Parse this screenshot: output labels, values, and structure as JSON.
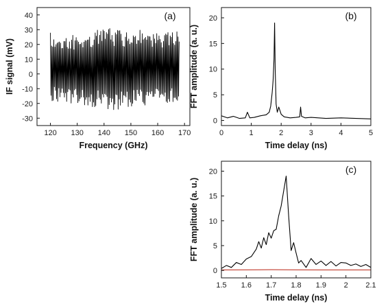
{
  "chart_data": [
    {
      "panel": "(a)",
      "type": "line",
      "xlabel": "Frequency (GHz)",
      "ylabel": "IF signal (mV)",
      "xlim": [
        115,
        172
      ],
      "ylim": [
        -35,
        45
      ],
      "xticks": [
        120,
        130,
        140,
        150,
        160,
        170
      ],
      "yticks": [
        -30,
        -20,
        -10,
        0,
        10,
        20,
        30,
        40
      ],
      "grid": false,
      "series": [
        {
          "color": "#000000",
          "description_points": {
            "x": [
              120,
              126,
              132,
              138,
              144,
              150,
              156,
              162,
              168
            ],
            "upper": [
              28,
              25,
              28,
              31,
              31,
              30,
              30,
              28,
              30
            ],
            "lower": [
              -18,
              -20,
              -21,
              -23,
              -25,
              -22,
              -22,
              -20,
              -19
            ]
          }
        }
      ]
    },
    {
      "panel": "(b)",
      "type": "line",
      "xlabel": "Time delay (ns)",
      "ylabel": "FFT amplitude (a. u.)",
      "xlim": [
        0,
        5
      ],
      "ylim": [
        -1,
        22
      ],
      "xticks": [
        0,
        1,
        2,
        3,
        4,
        5
      ],
      "yticks": [
        0,
        5,
        10,
        15,
        20
      ],
      "grid": false,
      "series": [
        {
          "color": "#000000",
          "x": [
            0.0,
            0.2,
            0.4,
            0.6,
            0.8,
            0.87,
            0.95,
            1.1,
            1.3,
            1.5,
            1.6,
            1.65,
            1.7,
            1.73,
            1.76,
            1.78,
            1.8,
            1.83,
            1.87,
            1.92,
            2.0,
            2.1,
            2.3,
            2.5,
            2.62,
            2.65,
            2.68,
            2.8,
            3.0,
            3.5,
            4.0,
            4.5,
            5.0
          ],
          "y": [
            0.9,
            0.5,
            0.8,
            0.4,
            0.5,
            1.6,
            0.5,
            0.6,
            0.9,
            1.1,
            1.6,
            2.8,
            5.5,
            7.8,
            12.0,
            19.0,
            10.0,
            3.2,
            1.6,
            2.6,
            1.2,
            0.7,
            0.5,
            0.6,
            0.7,
            2.6,
            0.8,
            0.5,
            0.6,
            0.4,
            0.5,
            0.4,
            0.3
          ]
        }
      ]
    },
    {
      "panel": "(c)",
      "type": "line",
      "xlabel": "Time delay (ns)",
      "ylabel": "FFT amplitude (a. u.)",
      "xlim": [
        1.5,
        2.1
      ],
      "ylim": [
        -1.5,
        22
      ],
      "xticks": [
        1.5,
        1.6,
        1.7,
        1.8,
        1.9,
        2.0,
        2.1
      ],
      "yticks": [
        0,
        5,
        10,
        15,
        20
      ],
      "grid": false,
      "series": [
        {
          "color": "#000000",
          "x": [
            1.5,
            1.52,
            1.54,
            1.56,
            1.58,
            1.6,
            1.62,
            1.64,
            1.65,
            1.66,
            1.67,
            1.68,
            1.69,
            1.7,
            1.71,
            1.72,
            1.73,
            1.74,
            1.75,
            1.76,
            1.77,
            1.78,
            1.79,
            1.8,
            1.81,
            1.82,
            1.84,
            1.86,
            1.88,
            1.9,
            1.92,
            1.94,
            1.96,
            1.98,
            2.0,
            2.02,
            2.04,
            2.06,
            2.08,
            2.1
          ],
          "y": [
            0.4,
            1.0,
            0.6,
            1.6,
            1.2,
            2.3,
            2.8,
            4.3,
            5.8,
            4.5,
            6.6,
            5.2,
            7.6,
            6.5,
            8.0,
            8.3,
            11.0,
            13.0,
            16.0,
            19.0,
            11.0,
            4.0,
            5.6,
            3.5,
            1.5,
            2.0,
            0.6,
            2.4,
            1.2,
            1.9,
            1.0,
            1.8,
            0.9,
            1.6,
            1.5,
            1.0,
            1.3,
            0.8,
            1.2,
            0.6
          ]
        },
        {
          "color": "#c0392b",
          "x": [
            1.5,
            1.6,
            1.7,
            1.8,
            1.9,
            2.0,
            2.1
          ],
          "y": [
            0.1,
            0.12,
            0.15,
            0.12,
            0.1,
            0.1,
            0.1
          ]
        }
      ]
    }
  ]
}
